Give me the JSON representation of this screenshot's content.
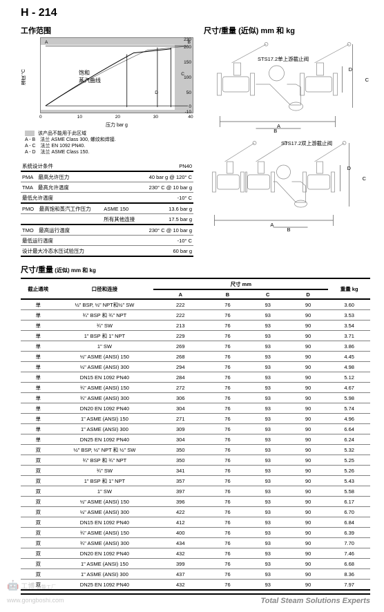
{
  "header": {
    "code": "H - 214"
  },
  "chart": {
    "title": "工作范围",
    "gray_legend": "该产品不能用于此区域",
    "legend_lines": [
      "A - B　法兰 ASME Class 300, 螺纹和焊接.",
      "A - C　法兰 EN 1092 PN40.",
      "A - D　法兰 ASME Class 150."
    ],
    "y_ticks": [
      230,
      200,
      150,
      100,
      50,
      0,
      -10
    ],
    "x_ticks": [
      0,
      10,
      20,
      30,
      40
    ],
    "x_label": "压力 bar g",
    "y_label": "温度 °C",
    "curve_label": "饱和\n蒸汽曲线",
    "labels": {
      "A": "A",
      "B": "B",
      "C": "C",
      "D": "D"
    }
  },
  "spec": {
    "rows": [
      {
        "l": "系统设计条件",
        "r": "PN40",
        "thick": true
      },
      {
        "l": "PMA　最高允许压力",
        "r": "40 bar g @ 120° C"
      },
      {
        "l": "TMA　最高允许温度",
        "r": "230° C @ 10 bar g"
      },
      {
        "l": "最低允许温度",
        "r": "-10° C",
        "thick": true
      },
      {
        "l": "PMO　最高饱和蒸汽工作压力",
        "m": "ASME 150",
        "r": "13.6 bar g"
      },
      {
        "l": "",
        "m": "所有其他连接",
        "r": "17.5 bar g",
        "thick": true
      },
      {
        "l": "TMO　最高运行温度",
        "r": "230° C @ 10 bar g"
      },
      {
        "l": "最低运行温度",
        "r": "-10° C"
      },
      {
        "l": "设计最大冷态水压试验压力",
        "r": "60 bar g",
        "thick": true
      }
    ]
  },
  "diagrams": {
    "title": "尺寸/重量 (近似) mm 和 kg",
    "label1": "STS17.2单上游截止阀",
    "label2": "STS17.2双上游截止阀",
    "dims": {
      "A": "A",
      "B": "B",
      "C": "C",
      "D": "D"
    }
  },
  "big_table": {
    "title": "尺寸/重量",
    "suffix": "(近似) mm 和 kg",
    "headers": {
      "col1": "截止通埃",
      "col2": "口径和连接",
      "dim_header": "尺寸 mm",
      "A": "A",
      "B": "B",
      "C": "C",
      "D": "D",
      "weight": "重量 kg"
    },
    "rows": [
      [
        "单",
        "½\" BSP, ½\" NPT和½\" SW",
        "222",
        "76",
        "93",
        "90",
        "3.60"
      ],
      [
        "单",
        "¾\" BSP 和 ¾\" NPT",
        "222",
        "76",
        "93",
        "90",
        "3.53"
      ],
      [
        "单",
        "¾\" SW",
        "213",
        "76",
        "93",
        "90",
        "3.54"
      ],
      [
        "单",
        "1\" BSP 和 1\" NPT",
        "229",
        "76",
        "93",
        "90",
        "3.71"
      ],
      [
        "单",
        "1\" SW",
        "269",
        "76",
        "93",
        "90",
        "3.86"
      ],
      [
        "单",
        "½\" ASME (ANSI) 150",
        "268",
        "76",
        "93",
        "90",
        "4.45"
      ],
      [
        "单",
        "½\" ASME (ANSI) 300",
        "294",
        "76",
        "93",
        "90",
        "4.98"
      ],
      [
        "单",
        "DN15 EN 1092 PN40",
        "284",
        "76",
        "93",
        "90",
        "5.12"
      ],
      [
        "单",
        "¾\" ASME (ANSI) 150",
        "272",
        "76",
        "93",
        "90",
        "4.67"
      ],
      [
        "单",
        "¾\" ASME (ANSI) 300",
        "306",
        "76",
        "93",
        "90",
        "5.98"
      ],
      [
        "单",
        "DN20 EN 1092 PN40",
        "304",
        "76",
        "93",
        "90",
        "5.74"
      ],
      [
        "单",
        "1\" ASME (ANSI) 150",
        "271",
        "76",
        "93",
        "90",
        "4.96"
      ],
      [
        "单",
        "1\" ASME (ANSI) 300",
        "309",
        "76",
        "93",
        "90",
        "6.64"
      ],
      [
        "单",
        "DN25 EN 1092 PN40",
        "304",
        "76",
        "93",
        "90",
        "6.24"
      ],
      [
        "双",
        "½\" BSP, ½\" NPT 和 ½\" SW",
        "350",
        "76",
        "93",
        "90",
        "5.32"
      ],
      [
        "双",
        "¾\" BSP 和 ¾\" NPT",
        "350",
        "76",
        "93",
        "90",
        "5.25"
      ],
      [
        "双",
        "¾\" SW",
        "341",
        "76",
        "93",
        "90",
        "5.26"
      ],
      [
        "双",
        "1\" BSP 和 1\" NPT",
        "357",
        "76",
        "93",
        "90",
        "5.43"
      ],
      [
        "双",
        "1\" SW",
        "397",
        "76",
        "93",
        "90",
        "5.58"
      ],
      [
        "双",
        "½\" ASME (ANSI) 150",
        "396",
        "76",
        "93",
        "90",
        "6.17"
      ],
      [
        "双",
        "½\" ASME (ANSI) 300",
        "422",
        "76",
        "93",
        "90",
        "6.70"
      ],
      [
        "双",
        "DN15 EN 1092 PN40",
        "412",
        "76",
        "93",
        "90",
        "6.84"
      ],
      [
        "双",
        "¾\" ASME (ANSI) 150",
        "400",
        "76",
        "93",
        "90",
        "6.39"
      ],
      [
        "双",
        "¾\" ASME (ANSI) 300",
        "434",
        "76",
        "93",
        "90",
        "7.70"
      ],
      [
        "双",
        "DN20 EN 1092 PN40",
        "432",
        "76",
        "93",
        "90",
        "7.46"
      ],
      [
        "双",
        "1\" ASME (ANSI) 150",
        "399",
        "76",
        "93",
        "90",
        "6.68"
      ],
      [
        "双",
        "1\" ASME (ANSI) 300",
        "437",
        "76",
        "93",
        "90",
        "8.36"
      ],
      [
        "双",
        "DN25 EN 1092 PN40",
        "432",
        "76",
        "93",
        "90",
        "7.97"
      ]
    ]
  },
  "footer": {
    "text": "Total Steam Solutions Experts"
  },
  "watermark": {
    "line1": "工博",
    "line2": "www.gongboshi.com",
    "line3": "智能工厂"
  }
}
